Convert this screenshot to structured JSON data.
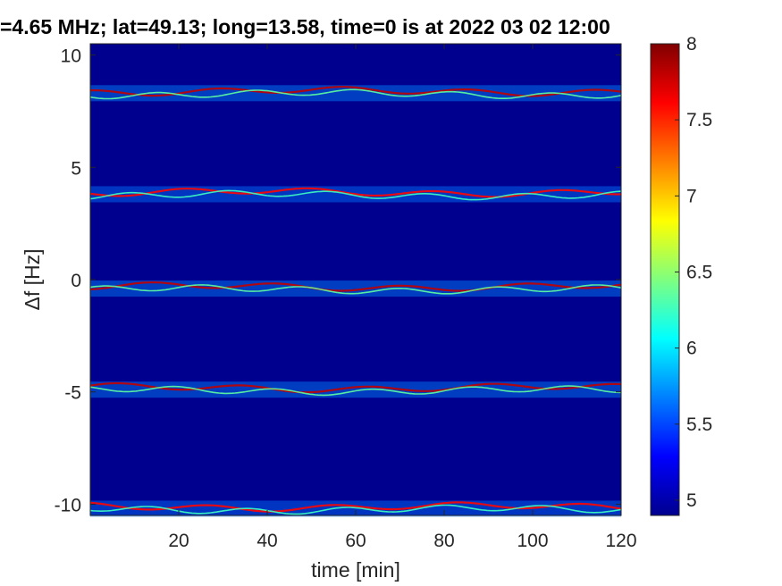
{
  "chart_data": {
    "type": "heatmap",
    "title": "=4.65 MHz;  lat=49.13; long=13.58, time=0 is at 2022 03 02 12:00",
    "xlabel": "time [min]",
    "ylabel": "Δf [Hz]",
    "xlim": [
      0,
      120
    ],
    "ylim": [
      -10.5,
      10.5
    ],
    "xticks": [
      20,
      40,
      60,
      80,
      100,
      120
    ],
    "xtick_labels": [
      "20",
      "40",
      "60",
      "80",
      "100",
      "120"
    ],
    "yticks": [
      10,
      5,
      0,
      -5,
      -10
    ],
    "ytick_labels": [
      "10",
      "5",
      "0",
      "-5",
      "-10"
    ],
    "colormap": "jet",
    "clim": [
      4.9,
      8.0
    ],
    "colorbar_ticks": [
      8,
      7.5,
      7,
      6.5,
      6,
      5.5,
      5
    ],
    "colorbar_tick_labels": [
      "8",
      "7.5",
      "7",
      "6.5",
      "6",
      "5.5",
      "5"
    ],
    "background_level": 4.95,
    "bands": [
      {
        "center_hz": 8.3,
        "time_min": [
          0,
          120
        ],
        "peak_level": 7.8
      },
      {
        "center_hz": 3.8,
        "time_min": [
          0,
          120
        ],
        "peak_level": 7.6
      },
      {
        "center_hz": -0.4,
        "time_min": [
          0,
          120
        ],
        "peak_level": 7.8
      },
      {
        "center_hz": -4.9,
        "time_min": [
          0,
          120
        ],
        "peak_level": 7.8
      },
      {
        "center_hz": -10.2,
        "time_min": [
          0,
          120
        ],
        "peak_level": 7.6
      }
    ]
  }
}
